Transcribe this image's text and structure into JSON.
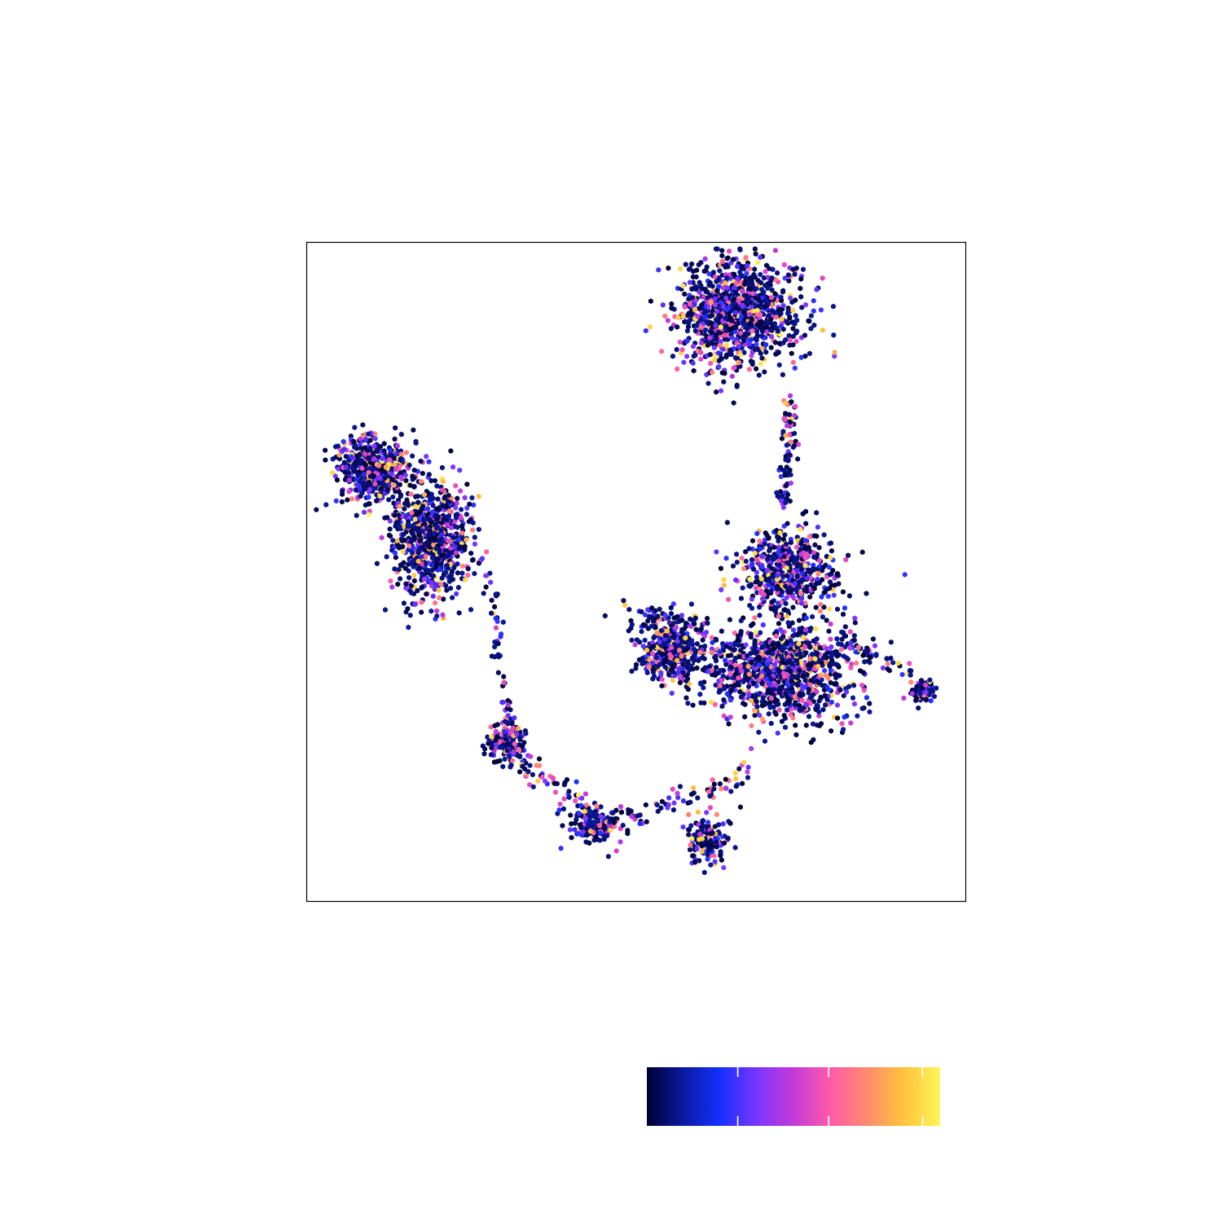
{
  "chart_data": {
    "type": "scatter",
    "title": "",
    "xlabel": "",
    "ylabel": "",
    "axes_visible": false,
    "tick_labels_visible": false,
    "grid": false,
    "xlim": [
      0,
      100
    ],
    "ylim": [
      0,
      100
    ],
    "colormap": {
      "stops": [
        "#000033",
        "#0a1aa0",
        "#1530ff",
        "#7a35ff",
        "#c43ad8",
        "#ff5aa8",
        "#ff8a70",
        "#ffc23c",
        "#fff55a"
      ],
      "range": [
        0,
        1
      ],
      "ticks": [
        0.31,
        0.62,
        0.94
      ],
      "tick_labels_visible": false
    },
    "marker_color_dark": "#0b0b3a",
    "clusters": [
      {
        "name": "top-right",
        "center": [
          65.5,
          89.0
        ],
        "spread": [
          8.5,
          7.5
        ],
        "weight": 0.2
      },
      {
        "name": "left-upper",
        "center": [
          10.0,
          65.5
        ],
        "spread": [
          5.5,
          4.5
        ],
        "weight": 0.1
      },
      {
        "name": "left-body",
        "center": [
          19.0,
          55.0
        ],
        "spread": [
          5.5,
          8.0
        ],
        "weight": 0.14
      },
      {
        "name": "right-lower-left",
        "center": [
          55.5,
          37.5
        ],
        "spread": [
          4.5,
          4.0
        ],
        "weight": 0.07
      },
      {
        "name": "right-lower-main",
        "center": [
          72.0,
          35.0
        ],
        "spread": [
          10.0,
          6.5
        ],
        "weight": 0.2
      },
      {
        "name": "right-mid",
        "center": [
          73.0,
          50.0
        ],
        "spread": [
          7.0,
          6.0
        ],
        "weight": 0.1
      },
      {
        "name": "small-left",
        "center": [
          30.5,
          24.5
        ],
        "spread": [
          2.5,
          2.8
        ],
        "weight": 0.04
      },
      {
        "name": "bottom-a",
        "center": [
          44.0,
          11.5
        ],
        "spread": [
          3.5,
          2.5
        ],
        "weight": 0.03
      },
      {
        "name": "bottom-b",
        "center": [
          61.0,
          9.5
        ],
        "spread": [
          3.0,
          3.5
        ],
        "weight": 0.03
      },
      {
        "name": "small-right",
        "center": [
          93.5,
          32.0
        ],
        "spread": [
          1.5,
          1.5
        ],
        "weight": 0.015
      }
    ],
    "bridges": [
      {
        "from": [
          73.5,
          76.0
        ],
        "to": [
          72.5,
          60.0
        ],
        "spread": 1.3,
        "count": 80
      },
      {
        "from": [
          27.5,
          50.0
        ],
        "to": [
          30.5,
          28.0
        ],
        "spread": 1.1,
        "count": 40
      },
      {
        "from": [
          33.0,
          20.5
        ],
        "to": [
          44.0,
          13.0
        ],
        "spread": 2.0,
        "count": 60
      },
      {
        "from": [
          47.0,
          12.0
        ],
        "to": [
          67.0,
          19.0
        ],
        "spread": 1.8,
        "count": 70
      },
      {
        "from": [
          81.0,
          40.0
        ],
        "to": [
          92.0,
          34.0
        ],
        "spread": 1.0,
        "count": 45
      },
      {
        "from": [
          49.0,
          43.5
        ],
        "to": [
          62.0,
          42.0
        ],
        "spread": 2.5,
        "count": 70
      }
    ],
    "point_count": 5200,
    "seed": 7
  }
}
